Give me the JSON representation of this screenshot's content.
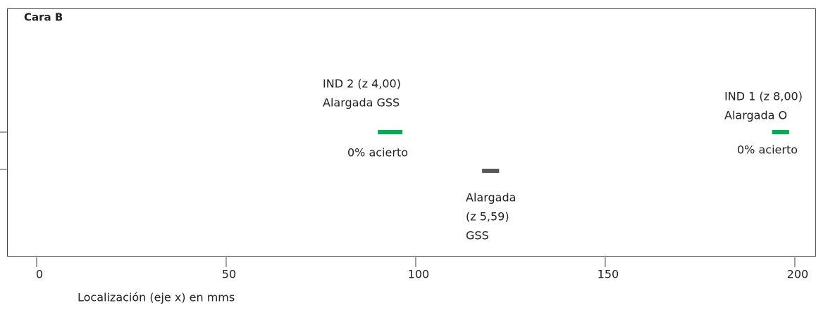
{
  "chart_data": {
    "type": "range",
    "title": "Cara B",
    "xlabel": "Localización (eje x) en mms",
    "xlim": [
      -7.8,
      205.4
    ],
    "xticks": [
      0,
      50,
      100,
      150,
      200
    ],
    "series": [
      {
        "labels": [
          "IND 2 (z 4,00)",
          "Alargada GSS"
        ],
        "note": "0% acierto",
        "start": 90,
        "end": 96.5,
        "color": "#00b050",
        "label_color": "#5b8c3a"
      },
      {
        "labels": [
          "Alargada",
          "(z 5,59)",
          "GSS"
        ],
        "start": 117.5,
        "end": 122,
        "color": "#595959",
        "label_color": "#666666"
      },
      {
        "labels": [
          "IND 1 (z 8,00)",
          "Alargada O"
        ],
        "note": "0% acierto",
        "start": 194,
        "end": 198.5,
        "color": "#00b050",
        "label_color": "#5b8c3a"
      }
    ]
  }
}
